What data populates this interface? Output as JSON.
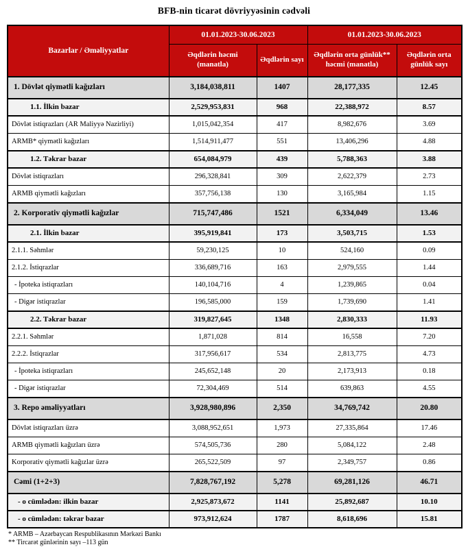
{
  "title": "BFB-nin ticarət dövriyyəsinin cədvəli",
  "table": {
    "corner_header": "Bazarlar / Əməliyyatlar",
    "period_headers": [
      "01.01.2023-30.06.2023",
      "01.01.2023-30.06.2023"
    ],
    "col_headers": [
      "Əqdlərin həcmi (manatla)",
      "Əqdlərin sayı",
      "Əqdlərin orta günlük** həcmi (manatla)",
      "Əqdlərin orta günlük sayı"
    ],
    "rows": [
      {
        "label": "1. Dövlət qiymətli kağızları",
        "values": [
          "3,184,038,811",
          "1407",
          "28,177,335",
          "12.45"
        ],
        "style": "section"
      },
      {
        "label": "1.1. İlkin bazar",
        "values": [
          "2,529,953,831",
          "968",
          "22,388,972",
          "8.57"
        ],
        "style": "subsection"
      },
      {
        "label": "Dövlət istiqrazları (AR Maliyyə Nazirliyi)",
        "values": [
          "1,015,042,354",
          "417",
          "8,982,676",
          "3.69"
        ],
        "style": "detail"
      },
      {
        "label": "ARMB* qiymətli kağızları",
        "values": [
          "1,514,911,477",
          "551",
          "13,406,296",
          "4.88"
        ],
        "style": "detail"
      },
      {
        "label": "1.2. Təkrar bazar",
        "values": [
          "654,084,979",
          "439",
          "5,788,363",
          "3.88"
        ],
        "style": "subsection"
      },
      {
        "label": "Dövlət istiqrazları",
        "values": [
          "296,328,841",
          "309",
          "2,622,379",
          "2.73"
        ],
        "style": "detail"
      },
      {
        "label": "ARMB qiymətli kağızları",
        "values": [
          "357,756,138",
          "130",
          "3,165,984",
          "1.15"
        ],
        "style": "detail"
      },
      {
        "label": "2. Korporativ qiymətli kağızlar",
        "values": [
          "715,747,486",
          "1521",
          "6,334,049",
          "13.46"
        ],
        "style": "section"
      },
      {
        "label": "2.1. İlkin bazar",
        "values": [
          "395,919,841",
          "173",
          "3,503,715",
          "1.53"
        ],
        "style": "subsection"
      },
      {
        "label": "2.1.1. Səhmlər",
        "values": [
          "59,230,125",
          "10",
          "524,160",
          "0.09"
        ],
        "style": "detail"
      },
      {
        "label": "2.1.2. İstiqrazlar",
        "values": [
          "336,689,716",
          "163",
          "2,979,555",
          "1.44"
        ],
        "style": "detail"
      },
      {
        "label": "- İpoteka istiqrazları",
        "values": [
          "140,104,716",
          "4",
          "1,239,865",
          "0.04"
        ],
        "style": "detail-sub"
      },
      {
        "label": "- Digər istiqrazlar",
        "values": [
          "196,585,000",
          "159",
          "1,739,690",
          "1.41"
        ],
        "style": "detail-sub"
      },
      {
        "label": "2.2. Təkrar bazar",
        "values": [
          "319,827,645",
          "1348",
          "2,830,333",
          "11.93"
        ],
        "style": "subsection"
      },
      {
        "label": "2.2.1. Səhmlər",
        "values": [
          "1,871,028",
          "814",
          "16,558",
          "7.20"
        ],
        "style": "detail"
      },
      {
        "label": "2.2.2. İstiqrazlar",
        "values": [
          "317,956,617",
          "534",
          "2,813,775",
          "4.73"
        ],
        "style": "detail"
      },
      {
        "label": "- İpoteka istiqrazları",
        "values": [
          "245,652,148",
          "20",
          "2,173,913",
          "0.18"
        ],
        "style": "detail-sub"
      },
      {
        "label": "- Digər istiqrazlar",
        "values": [
          "72,304,469",
          "514",
          "639,863",
          "4.55"
        ],
        "style": "detail-sub"
      },
      {
        "label": "3. Repo əməliyyatları",
        "values": [
          "3,928,980,896",
          "2,350",
          "34,769,742",
          "20.80"
        ],
        "style": "section"
      },
      {
        "label": "Dövlət istiqrazları üzrə",
        "values": [
          "3,088,952,651",
          "1,973",
          "27,335,864",
          "17.46"
        ],
        "style": "detail"
      },
      {
        "label": "ARMB qiymətli kağızları üzrə",
        "values": [
          "574,505,736",
          "280",
          "5,084,122",
          "2.48"
        ],
        "style": "detail"
      },
      {
        "label": "Korporativ qiymətli kağızlar üzrə",
        "values": [
          "265,522,509",
          "97",
          "2,349,757",
          "0.86"
        ],
        "style": "detail"
      },
      {
        "label": "Cəmi (1+2+3)",
        "values": [
          "7,828,767,192",
          "5,278",
          "69,281,126",
          "46.71"
        ],
        "style": "section"
      },
      {
        "label": "- o cümlədən: ilkin bazar",
        "values": [
          "2,925,873,672",
          "1141",
          "25,892,687",
          "10.10"
        ],
        "style": "total-sub"
      },
      {
        "label": "- o cümlədən: təkrar bazar",
        "values": [
          "973,912,624",
          "1787",
          "8,618,696",
          "15.81"
        ],
        "style": "total-sub"
      }
    ]
  },
  "footnotes": [
    "* ARMB – Azərbaycan Respublikasının Mərkəzi Bankı",
    "** Tircarət günlərinin sayı –113 gün"
  ],
  "colors": {
    "header_red": "#c30c0c",
    "section_bg": "#d9d9d9",
    "subsection_bg": "#f2f2f2",
    "border": "#000000",
    "header_text": "#ffffff"
  }
}
